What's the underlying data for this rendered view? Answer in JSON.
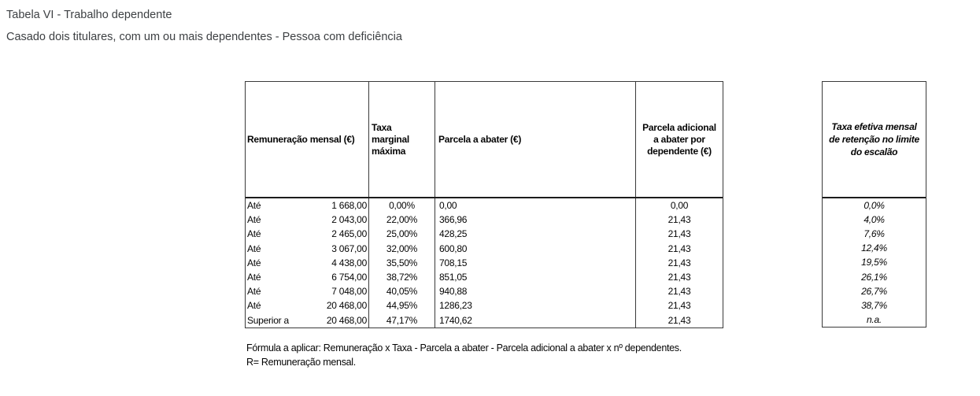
{
  "page": {
    "title": "Tabela VI - Trabalho dependente",
    "subtitle": "Casado dois titulares, com um ou mais dependentes - Pessoa com deficiência"
  },
  "main_table": {
    "headers": {
      "remuneracao": "Remuneração mensal (€)",
      "taxa_marginal": "Taxa\nmarginal\nmáxima",
      "parcela": "Parcela a abater (€)",
      "parcela_adicional": "Parcela adicional\na abater por\ndependente (€)"
    },
    "rows": [
      {
        "prefix": "Até",
        "limit": "1 668,00",
        "rate": "0,00%",
        "deduction": "0,00",
        "per_dependent": "0,00"
      },
      {
        "prefix": "Até",
        "limit": "2 043,00",
        "rate": "22,00%",
        "deduction": "366,96",
        "per_dependent": "21,43"
      },
      {
        "prefix": "Até",
        "limit": "2 465,00",
        "rate": "25,00%",
        "deduction": "428,25",
        "per_dependent": "21,43"
      },
      {
        "prefix": "Até",
        "limit": "3 067,00",
        "rate": "32,00%",
        "deduction": "600,80",
        "per_dependent": "21,43"
      },
      {
        "prefix": "Até",
        "limit": "4 438,00",
        "rate": "35,50%",
        "deduction": "708,15",
        "per_dependent": "21,43"
      },
      {
        "prefix": "Até",
        "limit": "6 754,00",
        "rate": "38,72%",
        "deduction": "851,05",
        "per_dependent": "21,43"
      },
      {
        "prefix": "Até",
        "limit": "7 048,00",
        "rate": "40,05%",
        "deduction": "940,88",
        "per_dependent": "21,43"
      },
      {
        "prefix": "Até",
        "limit": "20 468,00",
        "rate": "44,95%",
        "deduction": "1286,23",
        "per_dependent": "21,43"
      },
      {
        "prefix": "Superior a",
        "limit": "20 468,00",
        "rate": "47,17%",
        "deduction": "1740,62",
        "per_dependent": "21,43"
      }
    ]
  },
  "side_table": {
    "header": "Taxa efetiva mensal\nde retenção no limite\ndo escalão",
    "values": [
      "0,0%",
      "4,0%",
      "7,6%",
      "12,4%",
      "19,5%",
      "26,1%",
      "26,7%",
      "38,7%",
      "n.a."
    ]
  },
  "footer": {
    "formula": "Fórmula a aplicar: Remuneração x Taxa - Parcela a abater - Parcela adicional a abater x nº dependentes.",
    "note": "R= Remuneração mensal."
  },
  "colors": {
    "background": "#ffffff",
    "table_text": "#050505",
    "title_text": "#3d4043",
    "table_border": "#3a3a3a"
  }
}
